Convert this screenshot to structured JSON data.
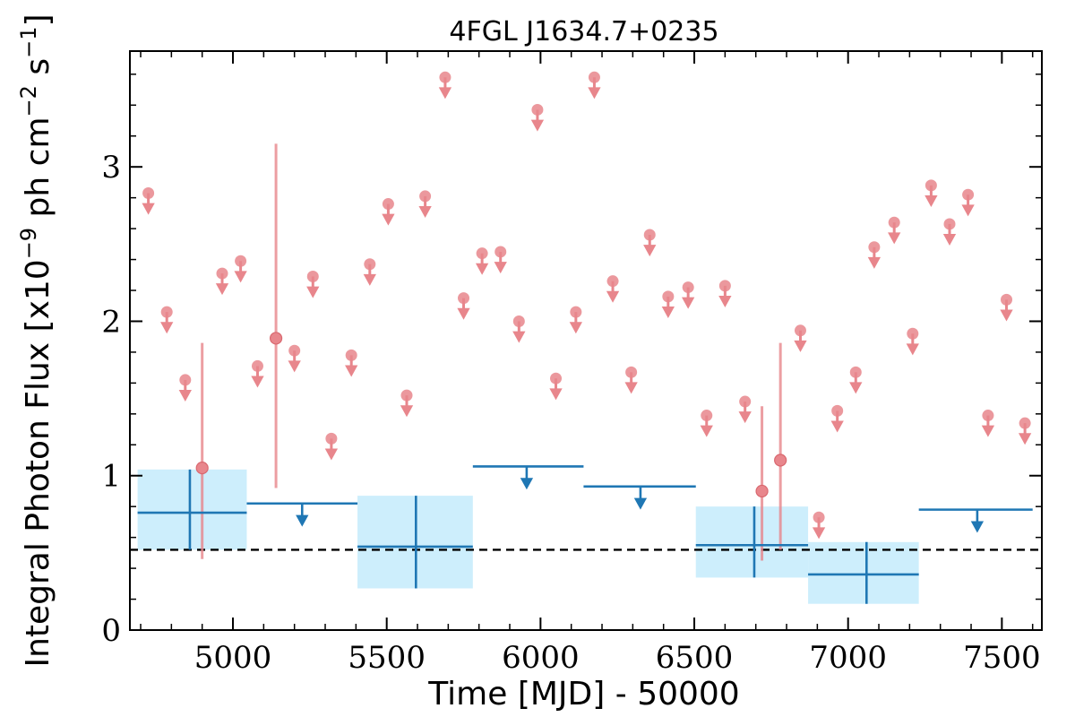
{
  "chart_data": {
    "type": "scatter",
    "title": "4FGL J1634.7+0235",
    "xlabel": "Time [MJD] - 50000",
    "ylabel_parts": {
      "base": "Integral Photon Flux [x10",
      "exp1": "−9",
      "mid": " ph cm",
      "exp2": "−2",
      "mid2": " s",
      "exp3": "−1",
      "end": "]"
    },
    "xlim": [
      4665,
      7630
    ],
    "ylim": [
      0,
      3.75
    ],
    "x_ticks": [
      5000,
      5500,
      6000,
      6500,
      7000,
      7500
    ],
    "y_ticks": [
      0,
      1,
      2,
      3
    ],
    "x_tick_labels": [
      "5000",
      "5500",
      "6000",
      "6500",
      "7000",
      "7500"
    ],
    "y_tick_labels": [
      "0",
      "1",
      "2",
      "3"
    ],
    "reference_line": 0.52,
    "colors": {
      "fine": "#e8868c",
      "coarse": "#1f77b4",
      "box": "#cdeefc",
      "reference": "#000000"
    },
    "series": [
      {
        "kind": "fine_upper_limits",
        "points": [
          {
            "x": 4725,
            "y": 2.83
          },
          {
            "x": 4785,
            "y": 2.06
          },
          {
            "x": 4845,
            "y": 1.62
          },
          {
            "x": 4965,
            "y": 2.31
          },
          {
            "x": 5025,
            "y": 2.39
          },
          {
            "x": 5080,
            "y": 1.71
          },
          {
            "x": 5200,
            "y": 1.81
          },
          {
            "x": 5260,
            "y": 2.29
          },
          {
            "x": 5320,
            "y": 1.24
          },
          {
            "x": 5385,
            "y": 1.78
          },
          {
            "x": 5445,
            "y": 2.37
          },
          {
            "x": 5505,
            "y": 2.76
          },
          {
            "x": 5565,
            "y": 1.52
          },
          {
            "x": 5625,
            "y": 2.81
          },
          {
            "x": 5690,
            "y": 3.58
          },
          {
            "x": 5750,
            "y": 2.15
          },
          {
            "x": 5810,
            "y": 2.44
          },
          {
            "x": 5870,
            "y": 2.45
          },
          {
            "x": 5930,
            "y": 2.0
          },
          {
            "x": 5990,
            "y": 3.37
          },
          {
            "x": 6050,
            "y": 1.63
          },
          {
            "x": 6115,
            "y": 2.06
          },
          {
            "x": 6175,
            "y": 3.58
          },
          {
            "x": 6235,
            "y": 2.26
          },
          {
            "x": 6295,
            "y": 1.67
          },
          {
            "x": 6355,
            "y": 2.56
          },
          {
            "x": 6415,
            "y": 2.16
          },
          {
            "x": 6480,
            "y": 2.22
          },
          {
            "x": 6540,
            "y": 1.39
          },
          {
            "x": 6600,
            "y": 2.23
          },
          {
            "x": 6665,
            "y": 1.48
          },
          {
            "x": 6845,
            "y": 1.94
          },
          {
            "x": 6905,
            "y": 0.73
          },
          {
            "x": 6965,
            "y": 1.42
          },
          {
            "x": 7025,
            "y": 1.67
          },
          {
            "x": 7085,
            "y": 2.48
          },
          {
            "x": 7150,
            "y": 2.64
          },
          {
            "x": 7210,
            "y": 1.92
          },
          {
            "x": 7270,
            "y": 2.88
          },
          {
            "x": 7330,
            "y": 2.63
          },
          {
            "x": 7390,
            "y": 2.82
          },
          {
            "x": 7455,
            "y": 1.39
          },
          {
            "x": 7515,
            "y": 2.14
          },
          {
            "x": 7575,
            "y": 1.34
          }
        ]
      },
      {
        "kind": "fine_detections",
        "points": [
          {
            "x": 4900,
            "y": 1.05,
            "ylo": 0.46,
            "yhi": 1.86
          },
          {
            "x": 5140,
            "y": 1.89,
            "ylo": 0.92,
            "yhi": 3.15
          },
          {
            "x": 6720,
            "y": 0.9,
            "ylo": 0.45,
            "yhi": 1.45
          },
          {
            "x": 6780,
            "y": 1.1,
            "ylo": 0.52,
            "yhi": 1.86
          }
        ]
      },
      {
        "kind": "coarse_detections",
        "points": [
          {
            "x": 5225,
            "x0": 5045,
            "x1": 5405,
            "y": 0.82
          },
          {
            "x": 5955,
            "x0": 5780,
            "x1": 6140,
            "y": 1.06
          },
          {
            "x": 6325,
            "x0": 6140,
            "x1": 6505,
            "y": 0.93
          },
          {
            "x": 7420,
            "x0": 7230,
            "x1": 7600,
            "y": 0.78
          }
        ]
      },
      {
        "kind": "coarse_measurements",
        "points": [
          {
            "x": 4860,
            "x0": 4690,
            "x1": 5045,
            "y": 0.76,
            "ylo": 0.52,
            "yhi": 1.04
          },
          {
            "x": 5595,
            "x0": 5405,
            "x1": 5780,
            "y": 0.54,
            "ylo": 0.27,
            "yhi": 0.87
          },
          {
            "x": 6695,
            "x0": 6505,
            "x1": 6870,
            "y": 0.55,
            "ylo": 0.34,
            "yhi": 0.8
          },
          {
            "x": 7060,
            "x0": 6870,
            "x1": 7230,
            "y": 0.36,
            "ylo": 0.17,
            "yhi": 0.57
          }
        ]
      }
    ]
  }
}
